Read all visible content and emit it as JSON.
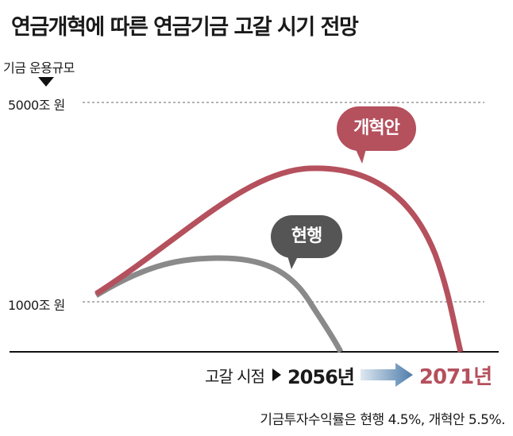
{
  "title": "연금개혁에 따른 연금기금 고갈 시기 전망",
  "chart_data": {
    "type": "line",
    "ylabel": "기금 운용규모",
    "y_ticks": [
      {
        "value": 5000,
        "label": "5000조 원"
      },
      {
        "value": 1000,
        "label": "1000조 원"
      }
    ],
    "ylim": [
      0,
      5000
    ],
    "grid": "dashed lines at labeled ticks",
    "series": [
      {
        "name": "개혁안",
        "color": "#b5505d",
        "start_value": 1000,
        "peak_value": 3700,
        "depletion_year": 2071
      },
      {
        "name": "현행",
        "color": "#8a8a8a",
        "start_value": 1000,
        "peak_value": 1900,
        "depletion_year": 2056
      }
    ]
  },
  "depletion": {
    "label": "고갈 시점",
    "current_year": "2056년",
    "reform_year": "2071년"
  },
  "footnote": "기금투자수익률은 현행 4.5%, 개혁안 5.5%.",
  "colors": {
    "reform": "#b5505d",
    "current": "#8a8a8a",
    "arrow_start": "#dfe8f1",
    "arrow_end": "#4d7cab"
  }
}
